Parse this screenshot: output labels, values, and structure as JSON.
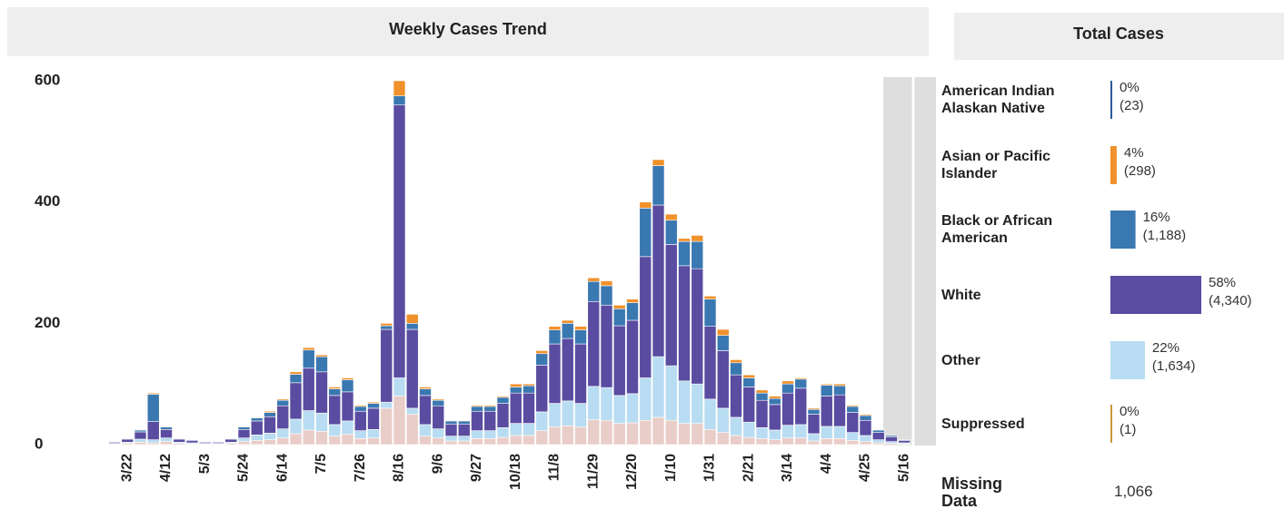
{
  "chart_data": [
    {
      "type": "stacked-bar",
      "title": "Weekly Cases Trend",
      "categories": [
        null,
        "3/22",
        null,
        null,
        "4/12",
        null,
        null,
        "5/3",
        null,
        null,
        "5/24",
        null,
        null,
        "6/14",
        null,
        null,
        "7/5",
        null,
        null,
        "7/26",
        null,
        null,
        "8/16",
        null,
        null,
        "9/6",
        null,
        null,
        "9/27",
        null,
        null,
        "10/18",
        null,
        null,
        "11/8",
        null,
        null,
        "11/29",
        null,
        null,
        "12/20",
        null,
        null,
        "1/10",
        null,
        null,
        "1/31",
        null,
        null,
        "2/21",
        null,
        null,
        "3/14",
        null,
        null,
        "4/4",
        null,
        null,
        "4/25",
        null,
        null,
        "5/16"
      ],
      "series": [
        {
          "name": "Missing Data",
          "color": "#e9cdc8",
          "values": [
            1,
            2,
            4,
            3,
            5,
            2,
            1,
            1,
            1,
            2,
            5,
            7,
            8,
            11,
            18,
            24,
            22,
            14,
            17,
            10,
            11,
            60,
            80,
            50,
            14,
            11,
            6,
            6,
            10,
            10,
            12,
            15,
            15,
            23,
            29,
            31,
            29,
            41,
            40,
            35,
            36,
            40,
            45,
            40,
            35,
            35,
            25,
            20,
            15,
            12,
            10,
            8,
            11,
            11,
            6,
            10,
            10,
            7,
            5,
            3,
            2,
            1
          ]
        },
        {
          "name": "Other",
          "color": "#b8dcf1",
          "values": [
            1,
            2,
            5,
            5,
            6,
            2,
            2,
            1,
            1,
            2,
            6,
            9,
            11,
            15,
            24,
            32,
            30,
            19,
            22,
            13,
            14,
            10,
            30,
            10,
            19,
            15,
            8,
            8,
            13,
            13,
            16,
            20,
            20,
            31,
            39,
            41,
            39,
            55,
            54,
            46,
            48,
            70,
            100,
            90,
            70,
            65,
            50,
            40,
            30,
            25,
            18,
            16,
            21,
            22,
            12,
            20,
            20,
            13,
            10,
            5,
            3,
            2
          ]
        },
        {
          "name": "White",
          "color": "#5a4ca0",
          "values": [
            2,
            5,
            12,
            30,
            14,
            5,
            4,
            2,
            2,
            5,
            14,
            23,
            27,
            38,
            60,
            70,
            68,
            48,
            48,
            32,
            35,
            120,
            450,
            130,
            48,
            38,
            20,
            20,
            32,
            32,
            40,
            50,
            50,
            77,
            98,
            103,
            98,
            140,
            136,
            115,
            121,
            200,
            250,
            200,
            190,
            190,
            120,
            95,
            70,
            58,
            45,
            42,
            53,
            60,
            32,
            50,
            52,
            33,
            25,
            12,
            8,
            4
          ]
        },
        {
          "name": "Black or African American",
          "color": "#3a78b1",
          "values": [
            1,
            1,
            3,
            45,
            4,
            1,
            1,
            1,
            1,
            1,
            4,
            5,
            7,
            9,
            14,
            30,
            25,
            11,
            20,
            8,
            8,
            6,
            15,
            10,
            11,
            9,
            5,
            5,
            8,
            8,
            10,
            10,
            12,
            19,
            23,
            25,
            23,
            33,
            32,
            28,
            29,
            80,
            65,
            40,
            40,
            45,
            45,
            25,
            20,
            15,
            12,
            10,
            15,
            15,
            8,
            18,
            15,
            10,
            8,
            4,
            2,
            1
          ]
        },
        {
          "name": "Asian or Pacific Islander",
          "color": "#f0912b",
          "values": [
            0,
            0,
            1,
            2,
            1,
            0,
            0,
            0,
            0,
            0,
            1,
            1,
            2,
            2,
            4,
            4,
            3,
            3,
            3,
            2,
            2,
            4,
            25,
            15,
            3,
            2,
            1,
            1,
            2,
            2,
            2,
            5,
            3,
            5,
            6,
            5,
            6,
            6,
            8,
            6,
            6,
            10,
            10,
            10,
            5,
            10,
            5,
            10,
            5,
            5,
            5,
            4,
            5,
            2,
            2,
            2,
            3,
            2,
            2,
            1,
            0,
            0
          ]
        }
      ],
      "ylim": [
        0,
        600
      ],
      "yticks": [
        0,
        200,
        400,
        600
      ]
    },
    {
      "type": "hbar",
      "title": "Total Cases",
      "categories": [
        "American Indian Alaskan Native",
        "Asian or Pacific Islander",
        "Black or African American",
        "White",
        "Other",
        "Suppressed"
      ],
      "values": [
        0,
        4,
        16,
        58,
        22,
        0
      ],
      "value_labels": [
        "0%",
        "4%",
        "16%",
        "58%",
        "22%",
        "0%"
      ],
      "counts": [
        23,
        298,
        1188,
        4340,
        1634,
        1
      ],
      "count_labels": [
        "(23)",
        "(298)",
        "(1,188)",
        "(4,340)",
        "(1,634)",
        "(1)"
      ],
      "colors": [
        "#2c5a9a",
        "#f0912b",
        "#3a78b1",
        "#5a4ca0",
        "#b8dcf1",
        "#c89a3a"
      ],
      "missing_label": "Missing Data",
      "missing_value": 1066,
      "missing_value_label": "1,066"
    }
  ]
}
